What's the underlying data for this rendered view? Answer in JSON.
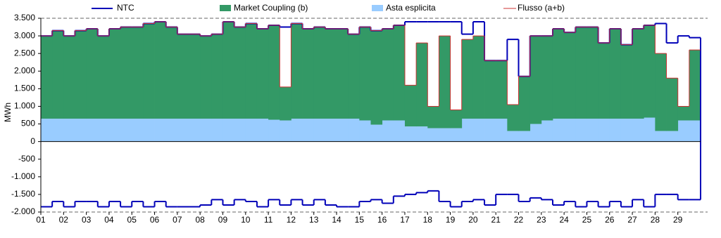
{
  "chart_data": {
    "type": "stacked-step",
    "y_label": "MWh",
    "xlim": [
      1,
      30
    ],
    "ylim": [
      -2000,
      3500
    ],
    "xticks": [
      {
        "value": 1,
        "label": "01"
      },
      {
        "value": 2,
        "label": "02"
      },
      {
        "value": 3,
        "label": "03"
      },
      {
        "value": 4,
        "label": "04"
      },
      {
        "value": 5,
        "label": "05"
      },
      {
        "value": 6,
        "label": "06"
      },
      {
        "value": 7,
        "label": "07"
      },
      {
        "value": 8,
        "label": "08"
      },
      {
        "value": 9,
        "label": "09"
      },
      10,
      11,
      12,
      13,
      14,
      15,
      16,
      17,
      18,
      19,
      20,
      21,
      22,
      23,
      24,
      25,
      26,
      27,
      28,
      29
    ],
    "yticks": [
      {
        "value": 3500,
        "label": "3.500"
      },
      {
        "value": 3000,
        "label": "3.000"
      },
      {
        "value": 2500,
        "label": "2.500"
      },
      {
        "value": 2000,
        "label": "2.000"
      },
      {
        "value": 1500,
        "label": "1.500"
      },
      {
        "value": 1000,
        "label": "1.000"
      },
      500,
      0,
      -500,
      {
        "value": -1000,
        "label": "-1.000"
      },
      {
        "value": -1500,
        "label": "-1.500"
      },
      {
        "value": -2000,
        "label": "-2.000"
      }
    ],
    "x": [
      1,
      1.5,
      2,
      2.5,
      3,
      3.5,
      4,
      4.5,
      5,
      5.5,
      6,
      6.5,
      7,
      7.5,
      8,
      8.5,
      9,
      9.5,
      10,
      10.5,
      11,
      11.5,
      12,
      12.5,
      13,
      13.5,
      14,
      14.5,
      15,
      15.5,
      16,
      16.5,
      17,
      17.5,
      18,
      18.5,
      19,
      19.5,
      20,
      20.5,
      21,
      21.5,
      22,
      22.5,
      23,
      23.5,
      24,
      24.5,
      25,
      25.5,
      26,
      26.5,
      27,
      27.5,
      28,
      28.5,
      29,
      29.5
    ],
    "series": [
      {
        "name": "NTC",
        "kind": "line",
        "color": "#0000b8",
        "values": [
          3000,
          3150,
          3000,
          3150,
          3200,
          3000,
          3200,
          3250,
          3250,
          3350,
          3400,
          3250,
          3050,
          3050,
          3000,
          3050,
          3400,
          3250,
          3350,
          3200,
          3300,
          3250,
          3350,
          3200,
          3250,
          3200,
          3200,
          3050,
          3250,
          3150,
          3200,
          3300,
          3400,
          3400,
          3400,
          3400,
          3400,
          3050,
          3400,
          2300,
          2300,
          2900,
          1850,
          3000,
          3000,
          3200,
          3100,
          3250,
          3250,
          2800,
          3200,
          2750,
          3200,
          3300,
          3350,
          2800,
          3000,
          2950
        ],
        "values_import": [
          -1850,
          -1700,
          -1850,
          -1700,
          -1700,
          -1850,
          -1700,
          -1850,
          -1700,
          -1850,
          -1700,
          -1850,
          -1850,
          -1850,
          -1800,
          -1650,
          -1800,
          -1650,
          -1700,
          -1850,
          -1650,
          -1800,
          -1650,
          -1800,
          -1650,
          -1800,
          -1850,
          -1850,
          -1700,
          -1650,
          -1750,
          -1550,
          -1500,
          -1450,
          -1400,
          -1700,
          -1850,
          -1700,
          -1650,
          -1800,
          -1500,
          -1500,
          -1700,
          -1600,
          -1650,
          -1800,
          -1700,
          -1850,
          -1700,
          -1850,
          -1700,
          -1850,
          -1650,
          -1850,
          -1500,
          -1500,
          -1650,
          -1650
        ]
      },
      {
        "name": "Market Coupling (b)",
        "kind": "area",
        "color": "#339966",
        "values": [
          2350,
          2500,
          2350,
          2500,
          2550,
          2350,
          2550,
          2600,
          2600,
          2700,
          2750,
          2600,
          2400,
          2400,
          2350,
          2400,
          2750,
          2600,
          2700,
          2550,
          2680,
          950,
          2700,
          2550,
          2600,
          2550,
          2550,
          2400,
          2650,
          2670,
          2600,
          2700,
          1170,
          2370,
          620,
          2620,
          520,
          2250,
          2350,
          1650,
          1650,
          750,
          1550,
          2500,
          2400,
          2550,
          2450,
          2600,
          2600,
          2150,
          2550,
          2100,
          2550,
          2620,
          2200,
          1500,
          400,
          2000
        ]
      },
      {
        "name": "Asta esplicita",
        "kind": "area",
        "color": "#99ccff",
        "values": [
          650,
          650,
          650,
          650,
          650,
          650,
          650,
          650,
          650,
          650,
          650,
          650,
          650,
          650,
          650,
          650,
          650,
          650,
          650,
          650,
          620,
          600,
          650,
          650,
          650,
          650,
          650,
          650,
          600,
          480,
          600,
          600,
          430,
          430,
          380,
          380,
          380,
          650,
          650,
          650,
          650,
          300,
          300,
          500,
          600,
          650,
          650,
          650,
          650,
          650,
          650,
          650,
          650,
          680,
          300,
          300,
          600,
          600
        ]
      },
      {
        "name": "Flusso (a+b)",
        "kind": "line",
        "color": "#cc3333",
        "values": [
          3000,
          3150,
          3000,
          3150,
          3200,
          3000,
          3200,
          3250,
          3250,
          3350,
          3400,
          3250,
          3050,
          3050,
          3000,
          3050,
          3400,
          3250,
          3350,
          3200,
          3300,
          1550,
          3350,
          3200,
          3250,
          3200,
          3200,
          3050,
          3250,
          3150,
          3200,
          3300,
          1600,
          2800,
          1000,
          3000,
          900,
          2900,
          3000,
          2300,
          2300,
          1050,
          1850,
          3000,
          3000,
          3200,
          3100,
          3250,
          3250,
          2800,
          3200,
          2750,
          3200,
          3300,
          2500,
          1800,
          1000,
          2600
        ]
      }
    ]
  }
}
